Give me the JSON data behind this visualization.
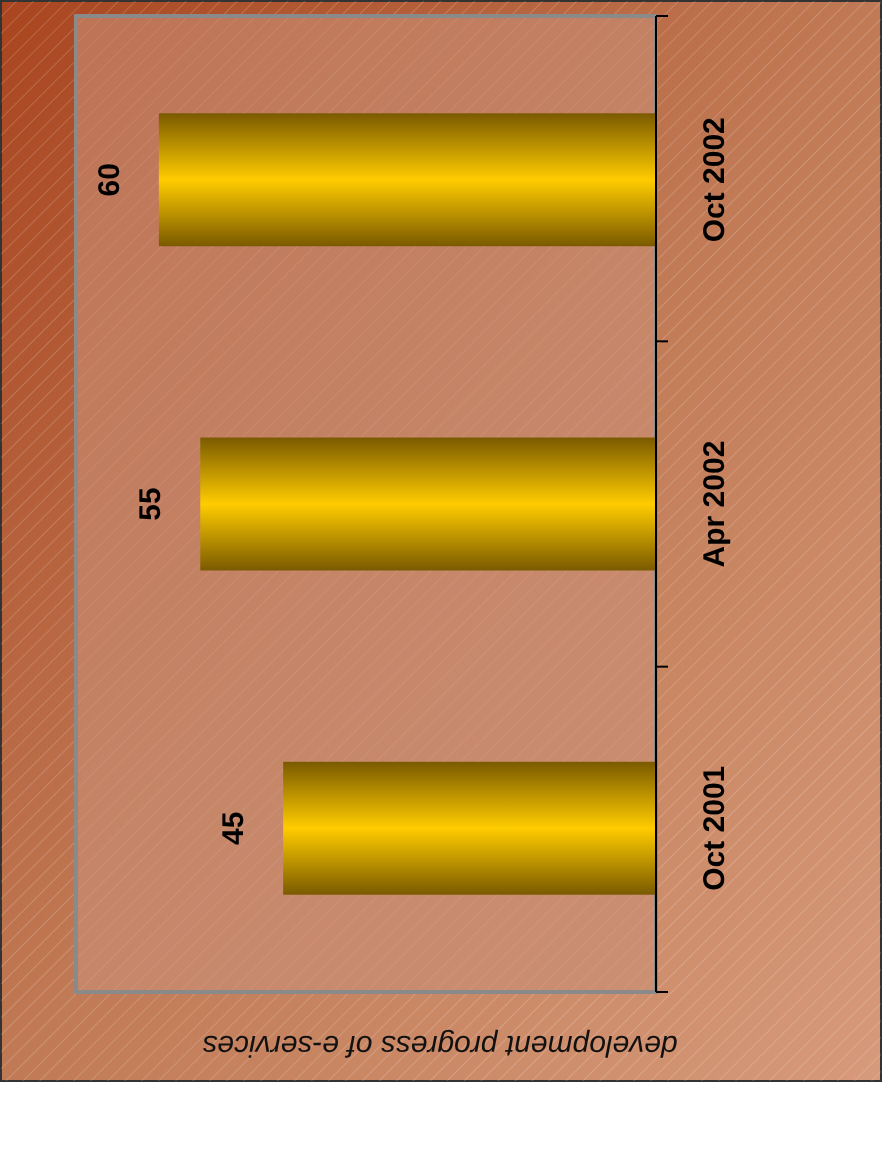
{
  "chart_data": {
    "type": "bar",
    "orientation": "horizontal",
    "title": "development progress of e-services",
    "categories": [
      "Oct 2002",
      "Apr 2002",
      "Oct 2001"
    ],
    "values": [
      60,
      55,
      45
    ],
    "color": "#ffcc00",
    "data_labels": true
  }
}
